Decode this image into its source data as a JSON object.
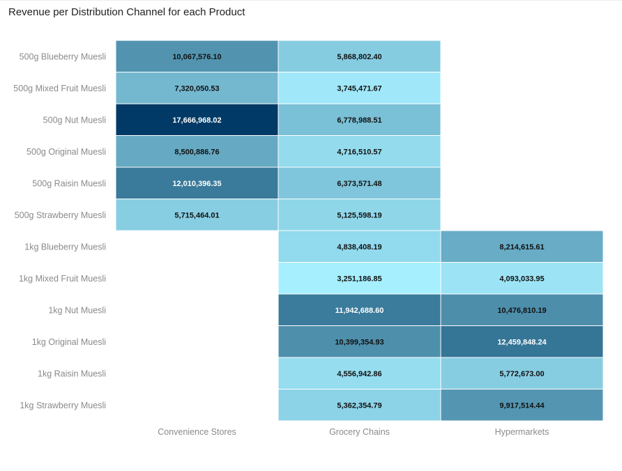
{
  "chart_data": {
    "type": "heatmap",
    "title": "Revenue per Distribution Channel for each Product",
    "rows": [
      "500g Blueberry Muesli",
      "500g Mixed Fruit Muesli",
      "500g Nut Muesli",
      "500g Original Muesli",
      "500g Raisin Muesli",
      "500g Strawberry Muesli",
      "1kg Blueberry Muesli",
      "1kg Mixed Fruit Muesli",
      "1kg Nut Muesli",
      "1kg Original Muesli",
      "1kg Raisin Muesli",
      "1kg Strawberry Muesli"
    ],
    "columns": [
      "Convenience Stores",
      "Grocery Chains",
      "Hypermarkets"
    ],
    "cells": [
      {
        "row": 0,
        "col": 0,
        "value": 10067576.1,
        "label": "10,067,576.10"
      },
      {
        "row": 0,
        "col": 1,
        "value": 5868802.4,
        "label": "5,868,802.40"
      },
      {
        "row": 1,
        "col": 0,
        "value": 7320050.53,
        "label": "7,320,050.53"
      },
      {
        "row": 1,
        "col": 1,
        "value": 3745471.67,
        "label": "3,745,471.67"
      },
      {
        "row": 2,
        "col": 0,
        "value": 17666968.02,
        "label": "17,666,968.02"
      },
      {
        "row": 2,
        "col": 1,
        "value": 6778988.51,
        "label": "6,778,988.51"
      },
      {
        "row": 3,
        "col": 0,
        "value": 8500886.76,
        "label": "8,500,886.76"
      },
      {
        "row": 3,
        "col": 1,
        "value": 4716510.57,
        "label": "4,716,510.57"
      },
      {
        "row": 4,
        "col": 0,
        "value": 12010396.35,
        "label": "12,010,396.35"
      },
      {
        "row": 4,
        "col": 1,
        "value": 6373571.48,
        "label": "6,373,571.48"
      },
      {
        "row": 5,
        "col": 0,
        "value": 5715464.01,
        "label": "5,715,464.01"
      },
      {
        "row": 5,
        "col": 1,
        "value": 5125598.19,
        "label": "5,125,598.19"
      },
      {
        "row": 6,
        "col": 1,
        "value": 4838408.19,
        "label": "4,838,408.19"
      },
      {
        "row": 6,
        "col": 2,
        "value": 8214615.61,
        "label": "8,214,615.61"
      },
      {
        "row": 7,
        "col": 1,
        "value": 3251186.85,
        "label": "3,251,186.85"
      },
      {
        "row": 7,
        "col": 2,
        "value": 4093033.95,
        "label": "4,093,033.95"
      },
      {
        "row": 8,
        "col": 1,
        "value": 11942688.6,
        "label": "11,942,688.60"
      },
      {
        "row": 8,
        "col": 2,
        "value": 10476810.19,
        "label": "10,476,810.19"
      },
      {
        "row": 9,
        "col": 1,
        "value": 10399354.93,
        "label": "10,399,354.93"
      },
      {
        "row": 9,
        "col": 2,
        "value": 12459848.24,
        "label": "12,459,848.24"
      },
      {
        "row": 10,
        "col": 1,
        "value": 4556942.86,
        "label": "4,556,942.86"
      },
      {
        "row": 10,
        "col": 2,
        "value": 5772673.0,
        "label": "5,772,673.00"
      },
      {
        "row": 11,
        "col": 1,
        "value": 5362354.79,
        "label": "5,362,354.79"
      },
      {
        "row": 11,
        "col": 2,
        "value": 9917514.44,
        "label": "9,917,514.44"
      }
    ],
    "color_scale": {
      "low": "#a6efff",
      "mid": "#3b7b9b",
      "high": "#013a66"
    }
  }
}
